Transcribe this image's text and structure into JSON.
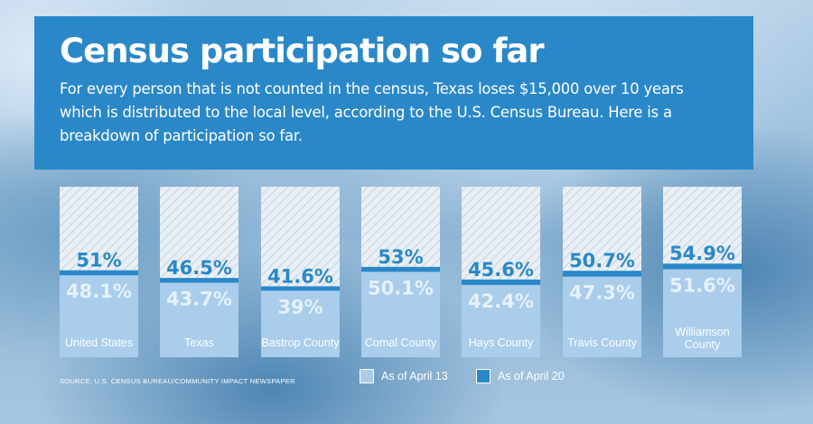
{
  "header": {
    "title": "Census participation so far",
    "subtitle": "For every person that is not counted in the census, Texas loses $15,000 over 10 years which is distributed to the local level, according to the U.S. Census Bureau. Here is a breakdown of participation so far."
  },
  "source": "SOURCE: U.S. CENSUS BUREAU/COMMUNITY IMPACT NEWSPAPER",
  "legend": {
    "april13": "As of April 13",
    "april20": "As of April 20"
  },
  "colors": {
    "april13_fill": "#a9cdeb",
    "april20_line": "#2a88c9",
    "april20_text": "#2a88c9",
    "april13_text": "#e6f1fa",
    "hatch_bg": "#e9eff4",
    "hatch_line": "#c9d5df"
  },
  "chart_data": {
    "type": "bar",
    "categories": [
      "United States",
      "Texas",
      "Bastrop County",
      "Comal County",
      "Hays County",
      "Travis County",
      "Williamson County"
    ],
    "series": [
      {
        "name": "As of April 13",
        "values": [
          48.1,
          43.7,
          39,
          50.1,
          42.4,
          47.3,
          51.6
        ],
        "labels": [
          "48.1%",
          "43.7%",
          "39%",
          "50.1%",
          "42.4%",
          "47.3%",
          "51.6%"
        ]
      },
      {
        "name": "As of April 20",
        "values": [
          51,
          46.5,
          41.6,
          53,
          45.6,
          50.7,
          54.9
        ],
        "labels": [
          "51%",
          "46.5%",
          "41.6%",
          "53%",
          "45.6%",
          "50.7%",
          "54.9%"
        ]
      }
    ],
    "ylim": [
      0,
      100
    ],
    "legend_position": "bottom"
  }
}
